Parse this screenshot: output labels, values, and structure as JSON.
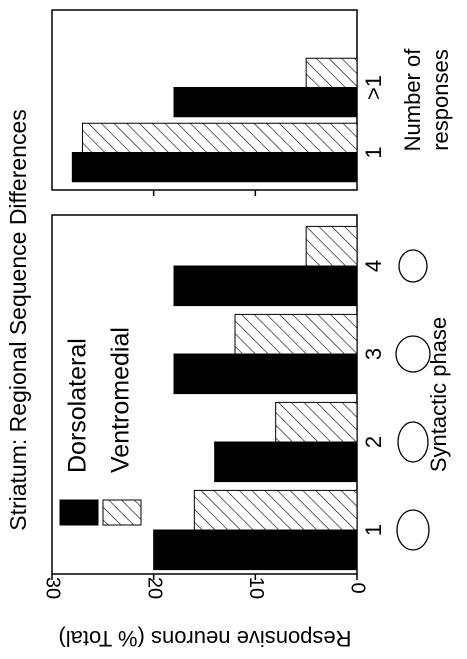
{
  "chart_data": [
    {
      "type": "bar",
      "title": "Striatum: Regional Sequence Differences",
      "ylabel": "Responsive neurons (% Total)",
      "xlabel": "Syntactic phase",
      "categories": [
        "1",
        "2",
        "3",
        "4"
      ],
      "series": [
        {
          "name": "Dorsolateral",
          "color": "#000000",
          "values": [
            20,
            14,
            18,
            18
          ]
        },
        {
          "name": "Ventromedial",
          "color": "hatch",
          "values": [
            16,
            8,
            12,
            5
          ]
        }
      ],
      "ylim": [
        0,
        30
      ],
      "yticks": [
        0,
        10,
        20,
        30
      ]
    },
    {
      "type": "bar",
      "xlabel": [
        "Number of",
        "responses"
      ],
      "categories": [
        "1",
        ">1"
      ],
      "series": [
        {
          "color": "#000000",
          "values": [
            28,
            18
          ]
        },
        {
          "color": "hatch",
          "values": [
            27,
            5
          ]
        }
      ],
      "ylim": [
        0,
        30
      ],
      "yticks": [
        10,
        20
      ]
    }
  ]
}
